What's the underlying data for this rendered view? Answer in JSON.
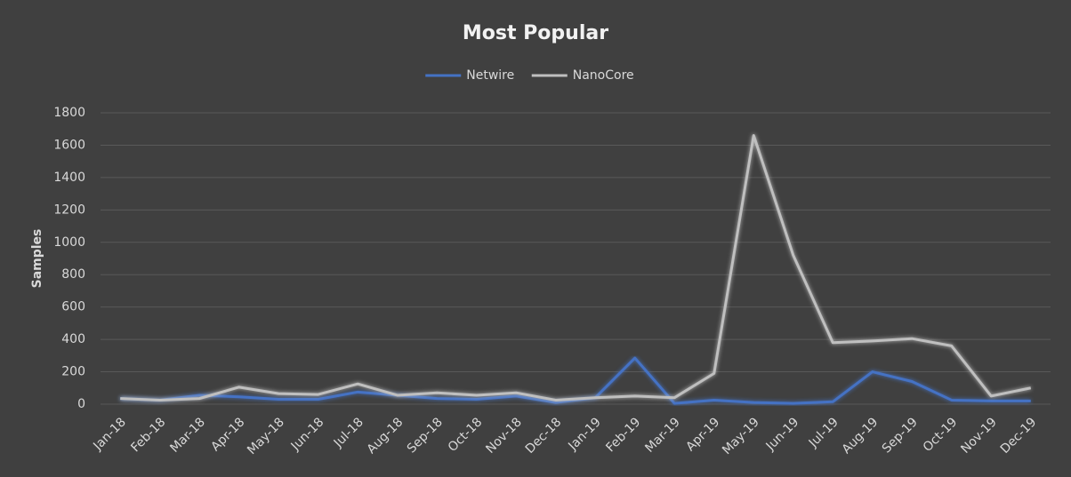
{
  "chart_data": {
    "type": "line",
    "title": "Most Popular",
    "y_label": "Samples",
    "categories": [
      "Jan-18",
      "Feb-18",
      "Mar-18",
      "Apr-18",
      "May-18",
      "Jun-18",
      "Jul-18",
      "Aug-18",
      "Sep-18",
      "Oct-18",
      "Nov-18",
      "Dec-18",
      "Jan-19",
      "Feb-19",
      "Mar-19",
      "Apr-19",
      "May-19",
      "Jun-19",
      "Jul-19",
      "Aug-19",
      "Sep-19",
      "Oct-19",
      "Nov-19",
      "Dec-19"
    ],
    "series": [
      {
        "name": "Netwire",
        "color": "#4472c4",
        "values": [
          35,
          25,
          55,
          45,
          30,
          30,
          75,
          55,
          35,
          30,
          50,
          10,
          40,
          285,
          5,
          25,
          10,
          5,
          15,
          200,
          140,
          25,
          20,
          20
        ]
      },
      {
        "name": "NanoCore",
        "color": "#bfbfbf",
        "values": [
          35,
          25,
          35,
          105,
          65,
          60,
          125,
          55,
          70,
          55,
          70,
          25,
          40,
          50,
          40,
          190,
          1660,
          920,
          380,
          390,
          405,
          360,
          50,
          100
        ]
      }
    ],
    "ylim": [
      0,
      1800
    ],
    "yticks": [
      0,
      200,
      400,
      600,
      800,
      1000,
      1200,
      1400,
      1600,
      1800
    ],
    "grid": true,
    "legend": "top"
  }
}
